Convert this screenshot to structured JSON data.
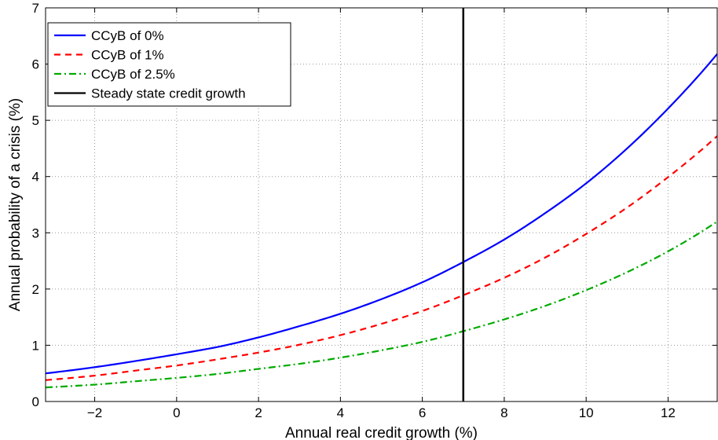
{
  "chart_data": {
    "type": "line",
    "xlabel": "Annual real credit growth (%)",
    "ylabel": "Annual probability of a crisis (%)",
    "xlim": [
      -3.2,
      13.2
    ],
    "ylim": [
      0,
      7
    ],
    "xticks": [
      -2,
      0,
      2,
      4,
      6,
      8,
      10,
      12
    ],
    "yticks": [
      0,
      1,
      2,
      3,
      4,
      5,
      6,
      7
    ],
    "grid": true,
    "legend_position": "top-left",
    "vline": {
      "name": "Steady state credit growth",
      "x": 7,
      "color": "#000000"
    },
    "x": [
      -3.2,
      -2,
      -1,
      0,
      1,
      2,
      3,
      4,
      5,
      6,
      7,
      8,
      9,
      10,
      11,
      12,
      13.2
    ],
    "series": [
      {
        "name": "CCyB of 0%",
        "color": "#0000ff",
        "dash": "solid",
        "values": [
          0.5,
          0.61,
          0.72,
          0.84,
          0.97,
          1.14,
          1.34,
          1.56,
          1.82,
          2.12,
          2.48,
          2.88,
          3.35,
          3.88,
          4.5,
          5.21,
          6.18
        ]
      },
      {
        "name": "CCyB of 1%",
        "color": "#ff0000",
        "dash": "dashed",
        "values": [
          0.38,
          0.46,
          0.55,
          0.64,
          0.75,
          0.87,
          1.01,
          1.18,
          1.38,
          1.61,
          1.89,
          2.2,
          2.56,
          2.98,
          3.45,
          3.99,
          4.72
        ]
      },
      {
        "name": "CCyB of 2.5%",
        "color": "#00aa00",
        "dash": "dashdot",
        "values": [
          0.25,
          0.3,
          0.36,
          0.42,
          0.49,
          0.58,
          0.67,
          0.78,
          0.91,
          1.06,
          1.25,
          1.46,
          1.7,
          1.98,
          2.3,
          2.67,
          3.2
        ]
      }
    ]
  }
}
